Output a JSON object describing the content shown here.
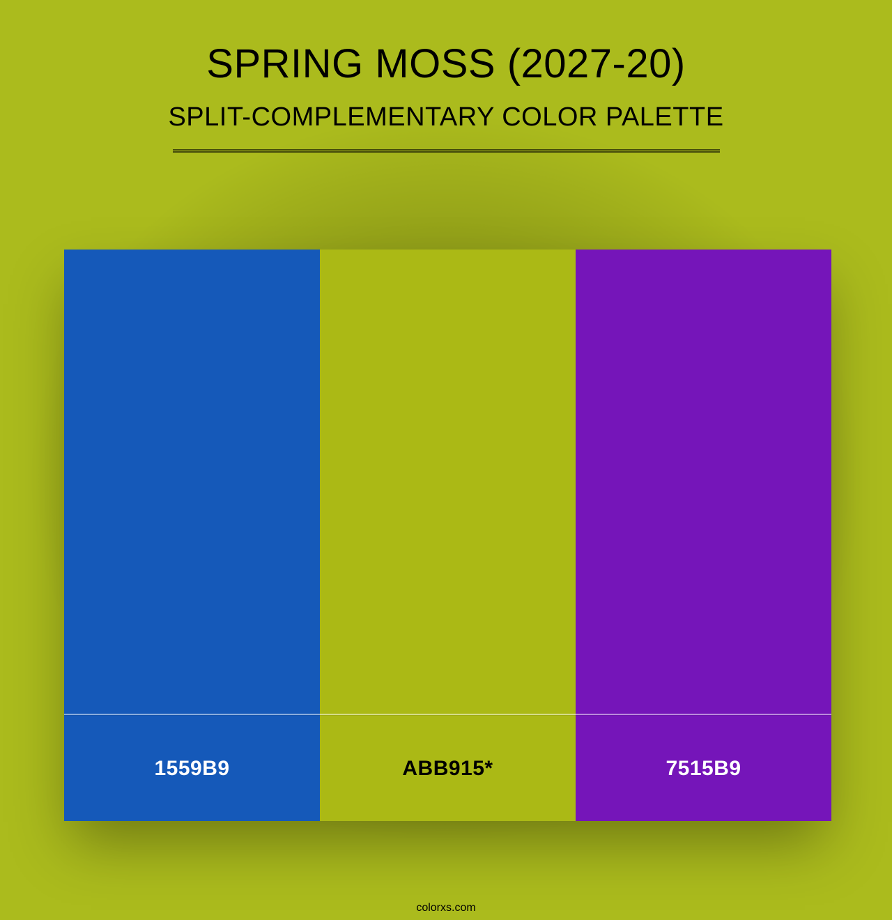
{
  "background_color": "#abbb1d",
  "title": "SPRING MOSS (2027-20)",
  "subtitle": "SPLIT-COMPLEMENTARY COLOR PALETTE",
  "swatches": [
    {
      "hex": "#1559b9",
      "label": "1559B9",
      "label_color": "#ffffff"
    },
    {
      "hex": "#abb915",
      "label": "ABB915*",
      "label_color": "#000000"
    },
    {
      "hex": "#7515b9",
      "label": "7515B9",
      "label_color": "#ffffff"
    }
  ],
  "footer": "colorxs.com"
}
